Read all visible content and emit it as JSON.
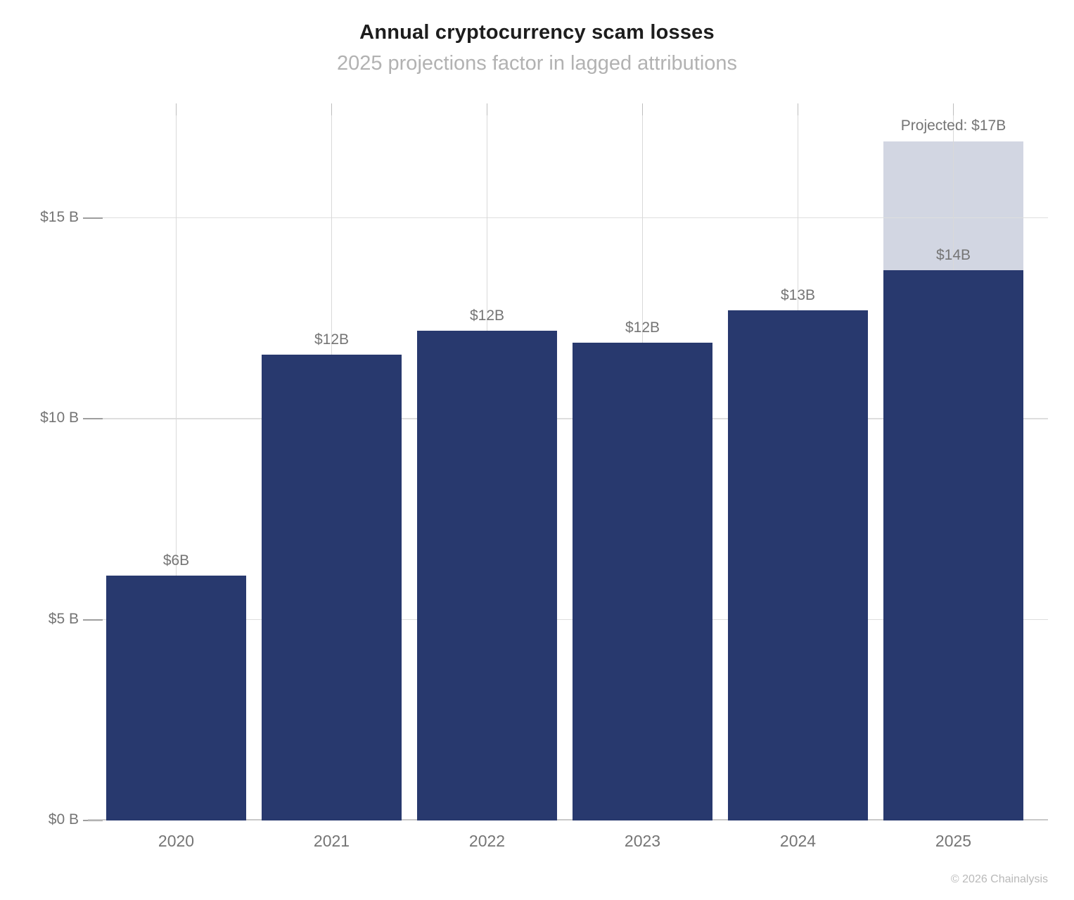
{
  "header": {
    "title": "Annual cryptocurrency scam losses",
    "subtitle": "2025 projections factor in lagged attributions"
  },
  "footer": {
    "credit": "© 2026 Chainalysis"
  },
  "chart_data": {
    "type": "bar",
    "title": "Annual cryptocurrency scam losses",
    "subtitle": "2025 projections factor in lagged attributions",
    "categories": [
      "2020",
      "2021",
      "2022",
      "2023",
      "2024",
      "2025"
    ],
    "values": [
      6.1,
      11.6,
      12.2,
      11.9,
      12.7,
      13.7
    ],
    "bar_labels": [
      "$6B",
      "$12B",
      "$12B",
      "$12B",
      "$13B",
      "$14B"
    ],
    "projected": {
      "category": "2025",
      "total_value": 16.9,
      "label": "Projected: $17B"
    },
    "yticks": {
      "values": [
        0,
        5,
        10,
        15
      ],
      "labels": [
        "$0 B",
        "$5 B",
        "$10 B",
        "$15 B"
      ]
    },
    "ylim": [
      0,
      17.85
    ],
    "grid": true,
    "legend": "none",
    "colors": {
      "bar": "#28396e",
      "projected": "#d2d6e2",
      "grid": "#d9d9d9",
      "tick": "#9e9e9e",
      "label_text": "#757575"
    }
  }
}
